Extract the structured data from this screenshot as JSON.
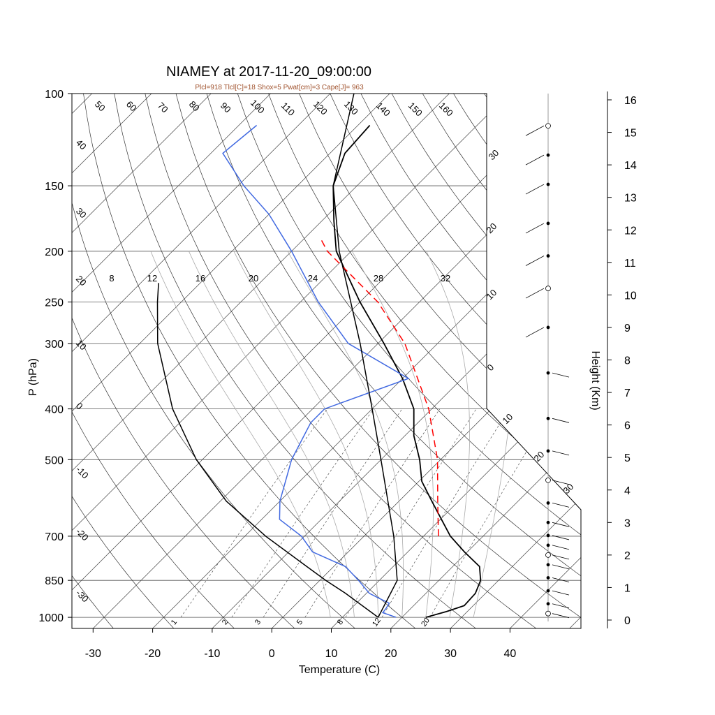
{
  "chart_data": {
    "type": "line",
    "chart_kind": "Skew-T log-P sounding",
    "title": "NIAMEY at 2017-11-20_09:00:00",
    "subtitle": "Plcl=918 Tlcl[C]=18 Shox=5 Pwat[cm]=3 Cape[J]= 963",
    "xlabel": "Temperature (C)",
    "ylabel": "P (hPa)",
    "y2label": "Height (Km)",
    "x_ticks": [
      -30,
      -20,
      -10,
      0,
      10,
      20,
      30,
      40
    ],
    "x_tick_labels": [
      "-30",
      "-20",
      "-10",
      "0",
      "10",
      "20",
      "30",
      "40"
    ],
    "p_ticks": [
      100,
      150,
      200,
      250,
      300,
      400,
      500,
      700,
      850,
      1000
    ],
    "p_tick_labels": [
      "100",
      "150",
      "200",
      "250",
      "300",
      "400",
      "500",
      "700",
      "850",
      "1000"
    ],
    "height_ticks": [
      0,
      1,
      2,
      3,
      4,
      5,
      6,
      7,
      8,
      9,
      10,
      11,
      12,
      13,
      14,
      15,
      16
    ],
    "height_tick_labels": [
      "0",
      "1",
      "2",
      "3",
      "4",
      "5",
      "6",
      "7",
      "8",
      "9",
      "10",
      "11",
      "12",
      "13",
      "14",
      "15",
      "16"
    ],
    "p_range": [
      100,
      1050
    ],
    "t_range_at_surface": [
      -34,
      35
    ],
    "dry_adiabat_labels": [
      "50",
      "60",
      "70",
      "80",
      "90",
      "100",
      "110",
      "120",
      "130",
      "140",
      "150",
      "160"
    ],
    "moist_adiabat_labels": [
      "8",
      "12",
      "16",
      "20",
      "24",
      "28",
      "32"
    ],
    "mixing_ratio_labels": [
      "1",
      "2",
      "3",
      "5",
      "8",
      "12",
      "20"
    ],
    "isotherm_labels_left": [
      "40",
      "30",
      "20",
      "10",
      "0",
      "-10",
      "-20",
      "-30"
    ],
    "isotherm_labels_right": [
      "30",
      "20",
      "10",
      "0",
      "10",
      "20",
      "30"
    ],
    "series": [
      {
        "name": "",
        "color": "#000000",
        "points": [
          {
            "p": 1000,
            "t": 24
          },
          {
            "p": 975,
            "t": 26.5
          },
          {
            "p": 950,
            "t": 28.5
          },
          {
            "p": 900,
            "t": 28.3
          },
          {
            "p": 850,
            "t": 27
          },
          {
            "p": 800,
            "t": 24.5
          },
          {
            "p": 750,
            "t": 19.5
          },
          {
            "p": 700,
            "t": 14.5
          },
          {
            "p": 600,
            "t": 5.5
          },
          {
            "p": 550,
            "t": 0.5
          },
          {
            "p": 500,
            "t": -3.5
          },
          {
            "p": 450,
            "t": -8.5
          },
          {
            "p": 400,
            "t": -13
          },
          {
            "p": 350,
            "t": -20
          },
          {
            "p": 300,
            "t": -29
          },
          {
            "p": 250,
            "t": -40
          },
          {
            "p": 200,
            "t": -52.5
          },
          {
            "p": 175,
            "t": -58
          },
          {
            "p": 150,
            "t": -64
          },
          {
            "p": 130,
            "t": -67.5
          },
          {
            "p": 115,
            "t": -68
          }
        ]
      },
      {
        "name": "",
        "color": "#4169e1",
        "points": [
          {
            "p": 1000,
            "t": 19
          },
          {
            "p": 980,
            "t": 16
          },
          {
            "p": 960,
            "t": 15.8
          },
          {
            "p": 940,
            "t": 15.5
          },
          {
            "p": 920,
            "t": 13
          },
          {
            "p": 900,
            "t": 10.5
          },
          {
            "p": 850,
            "t": 6.5
          },
          {
            "p": 800,
            "t": 2
          },
          {
            "p": 750,
            "t": -6
          },
          {
            "p": 700,
            "t": -10.5
          },
          {
            "p": 650,
            "t": -17
          },
          {
            "p": 600,
            "t": -20
          },
          {
            "p": 500,
            "t": -25
          },
          {
            "p": 425,
            "t": -28
          },
          {
            "p": 400,
            "t": -28
          },
          {
            "p": 350,
            "t": -19
          },
          {
            "p": 300,
            "t": -35
          },
          {
            "p": 250,
            "t": -47
          },
          {
            "p": 200,
            "t": -60
          },
          {
            "p": 170,
            "t": -70
          },
          {
            "p": 150,
            "t": -79
          },
          {
            "p": 130,
            "t": -88
          },
          {
            "p": 115,
            "t": -87
          }
        ]
      },
      {
        "name": "",
        "color": "#000000",
        "points": [
          {
            "p": 1000,
            "t": 16
          },
          {
            "p": 900,
            "t": 6.5
          },
          {
            "p": 850,
            "t": 1
          },
          {
            "p": 800,
            "t": -4.5
          },
          {
            "p": 700,
            "t": -16.5
          },
          {
            "p": 600,
            "t": -29
          },
          {
            "p": 500,
            "t": -41
          },
          {
            "p": 400,
            "t": -53.5
          },
          {
            "p": 300,
            "t": -67
          },
          {
            "p": 250,
            "t": -74
          },
          {
            "p": 230,
            "t": -77
          }
        ]
      },
      {
        "name": "",
        "color": "#ff0000",
        "dashed": true,
        "points": [
          {
            "p": 700,
            "t": 12.5
          },
          {
            "p": 600,
            "t": 6.5
          },
          {
            "p": 500,
            "t": -0.5
          },
          {
            "p": 400,
            "t": -10.5
          },
          {
            "p": 300,
            "t": -25.5
          },
          {
            "p": 250,
            "t": -37
          },
          {
            "p": 200,
            "t": -54
          },
          {
            "p": 190,
            "t": -57
          }
        ]
      },
      {
        "name": "",
        "color": "#000000",
        "points": [
          {
            "p": 1000,
            "t": 16
          },
          {
            "p": 850,
            "t": 13
          },
          {
            "p": 700,
            "t": 5
          },
          {
            "p": 500,
            "t": -10
          },
          {
            "p": 400,
            "t": -20
          },
          {
            "p": 300,
            "t": -33
          },
          {
            "p": 200,
            "t": -52
          },
          {
            "p": 150,
            "t": -64
          },
          {
            "p": 100,
            "t": -76
          }
        ]
      }
    ],
    "wind_barb_heights_km": [
      0.2,
      0.5,
      0.9,
      1.3,
      1.7,
      2.0,
      2.3,
      2.6,
      3.0,
      3.6,
      4.3,
      5.2,
      6.2,
      7.6,
      9.0,
      10.2,
      11.2,
      12.2,
      13.4,
      14.3,
      15.2
    ]
  }
}
